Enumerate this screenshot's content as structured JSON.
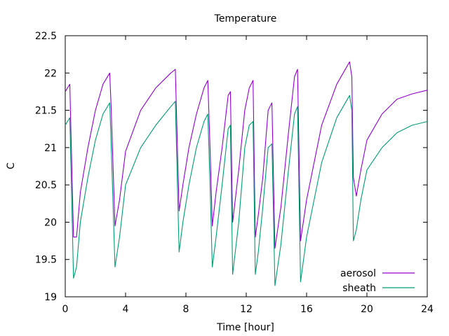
{
  "chart_data": {
    "type": "line",
    "title": "Temperature",
    "xlabel": "Time [hour]",
    "ylabel": "C",
    "xlim": [
      0,
      24
    ],
    "ylim": [
      19,
      22.5
    ],
    "grid": false,
    "legend_position": "bottom-right",
    "x_ticks": [
      "0",
      "4",
      "8",
      "12",
      "16",
      "20",
      "24"
    ],
    "y_ticks": [
      "19",
      "19.5",
      "20",
      "20.5",
      "21",
      "21.5",
      "22",
      "22.5"
    ],
    "series": [
      {
        "name": "aerosol",
        "color": "#9400d3",
        "x": [
          0.0,
          0.3,
          0.55,
          0.75,
          1.0,
          1.5,
          2.0,
          2.5,
          2.95,
          3.05,
          3.3,
          3.6,
          4.0,
          5.0,
          6.0,
          7.0,
          7.3,
          7.55,
          7.8,
          8.2,
          8.7,
          9.2,
          9.45,
          9.6,
          9.75,
          10.0,
          10.4,
          10.8,
          10.95,
          11.1,
          11.5,
          11.9,
          12.2,
          12.45,
          12.6,
          12.8,
          13.1,
          13.45,
          13.7,
          13.9,
          14.3,
          14.8,
          15.2,
          15.4,
          15.6,
          16.0,
          17.0,
          18.0,
          18.85,
          19.0,
          19.1,
          19.3,
          19.6,
          20.0,
          21.0,
          22.0,
          23.0,
          24.0
        ],
        "values": [
          21.75,
          21.85,
          19.8,
          19.8,
          20.4,
          21.0,
          21.5,
          21.85,
          22.0,
          21.5,
          19.95,
          20.3,
          20.95,
          21.5,
          21.8,
          22.0,
          22.05,
          20.15,
          20.5,
          21.0,
          21.45,
          21.8,
          21.9,
          21.0,
          19.95,
          20.4,
          21.0,
          21.7,
          21.75,
          20.0,
          20.7,
          21.5,
          21.8,
          21.9,
          19.8,
          20.1,
          20.6,
          21.5,
          21.6,
          19.65,
          20.2,
          21.2,
          21.95,
          22.05,
          19.75,
          20.3,
          21.3,
          21.85,
          22.15,
          21.95,
          20.6,
          20.35,
          20.7,
          21.1,
          21.45,
          21.65,
          21.72,
          21.77
        ]
      },
      {
        "name": "sheath",
        "color": "#009e73",
        "x": [
          0.0,
          0.3,
          0.55,
          0.75,
          1.0,
          1.5,
          2.0,
          2.5,
          2.95,
          3.05,
          3.3,
          3.6,
          4.0,
          5.0,
          6.0,
          7.0,
          7.3,
          7.55,
          7.8,
          8.2,
          8.7,
          9.2,
          9.45,
          9.6,
          9.75,
          10.0,
          10.4,
          10.8,
          10.95,
          11.1,
          11.5,
          11.9,
          12.2,
          12.45,
          12.6,
          12.8,
          13.1,
          13.45,
          13.7,
          13.9,
          14.3,
          14.8,
          15.2,
          15.4,
          15.6,
          16.0,
          17.0,
          18.0,
          18.85,
          19.0,
          19.1,
          19.3,
          19.6,
          20.0,
          21.0,
          22.0,
          23.0,
          24.0
        ],
        "values": [
          21.3,
          21.4,
          19.25,
          19.4,
          20.0,
          20.6,
          21.1,
          21.45,
          21.6,
          21.0,
          19.4,
          19.8,
          20.5,
          21.0,
          21.3,
          21.55,
          21.62,
          19.6,
          20.0,
          20.5,
          21.0,
          21.35,
          21.45,
          20.5,
          19.4,
          19.8,
          20.5,
          21.25,
          21.3,
          19.3,
          20.0,
          21.0,
          21.3,
          21.35,
          19.3,
          19.6,
          20.2,
          21.0,
          21.05,
          19.15,
          19.7,
          20.7,
          21.45,
          21.55,
          19.2,
          19.8,
          20.8,
          21.4,
          21.7,
          21.5,
          19.75,
          19.9,
          20.3,
          20.7,
          21.0,
          21.2,
          21.3,
          21.35
        ]
      }
    ]
  }
}
